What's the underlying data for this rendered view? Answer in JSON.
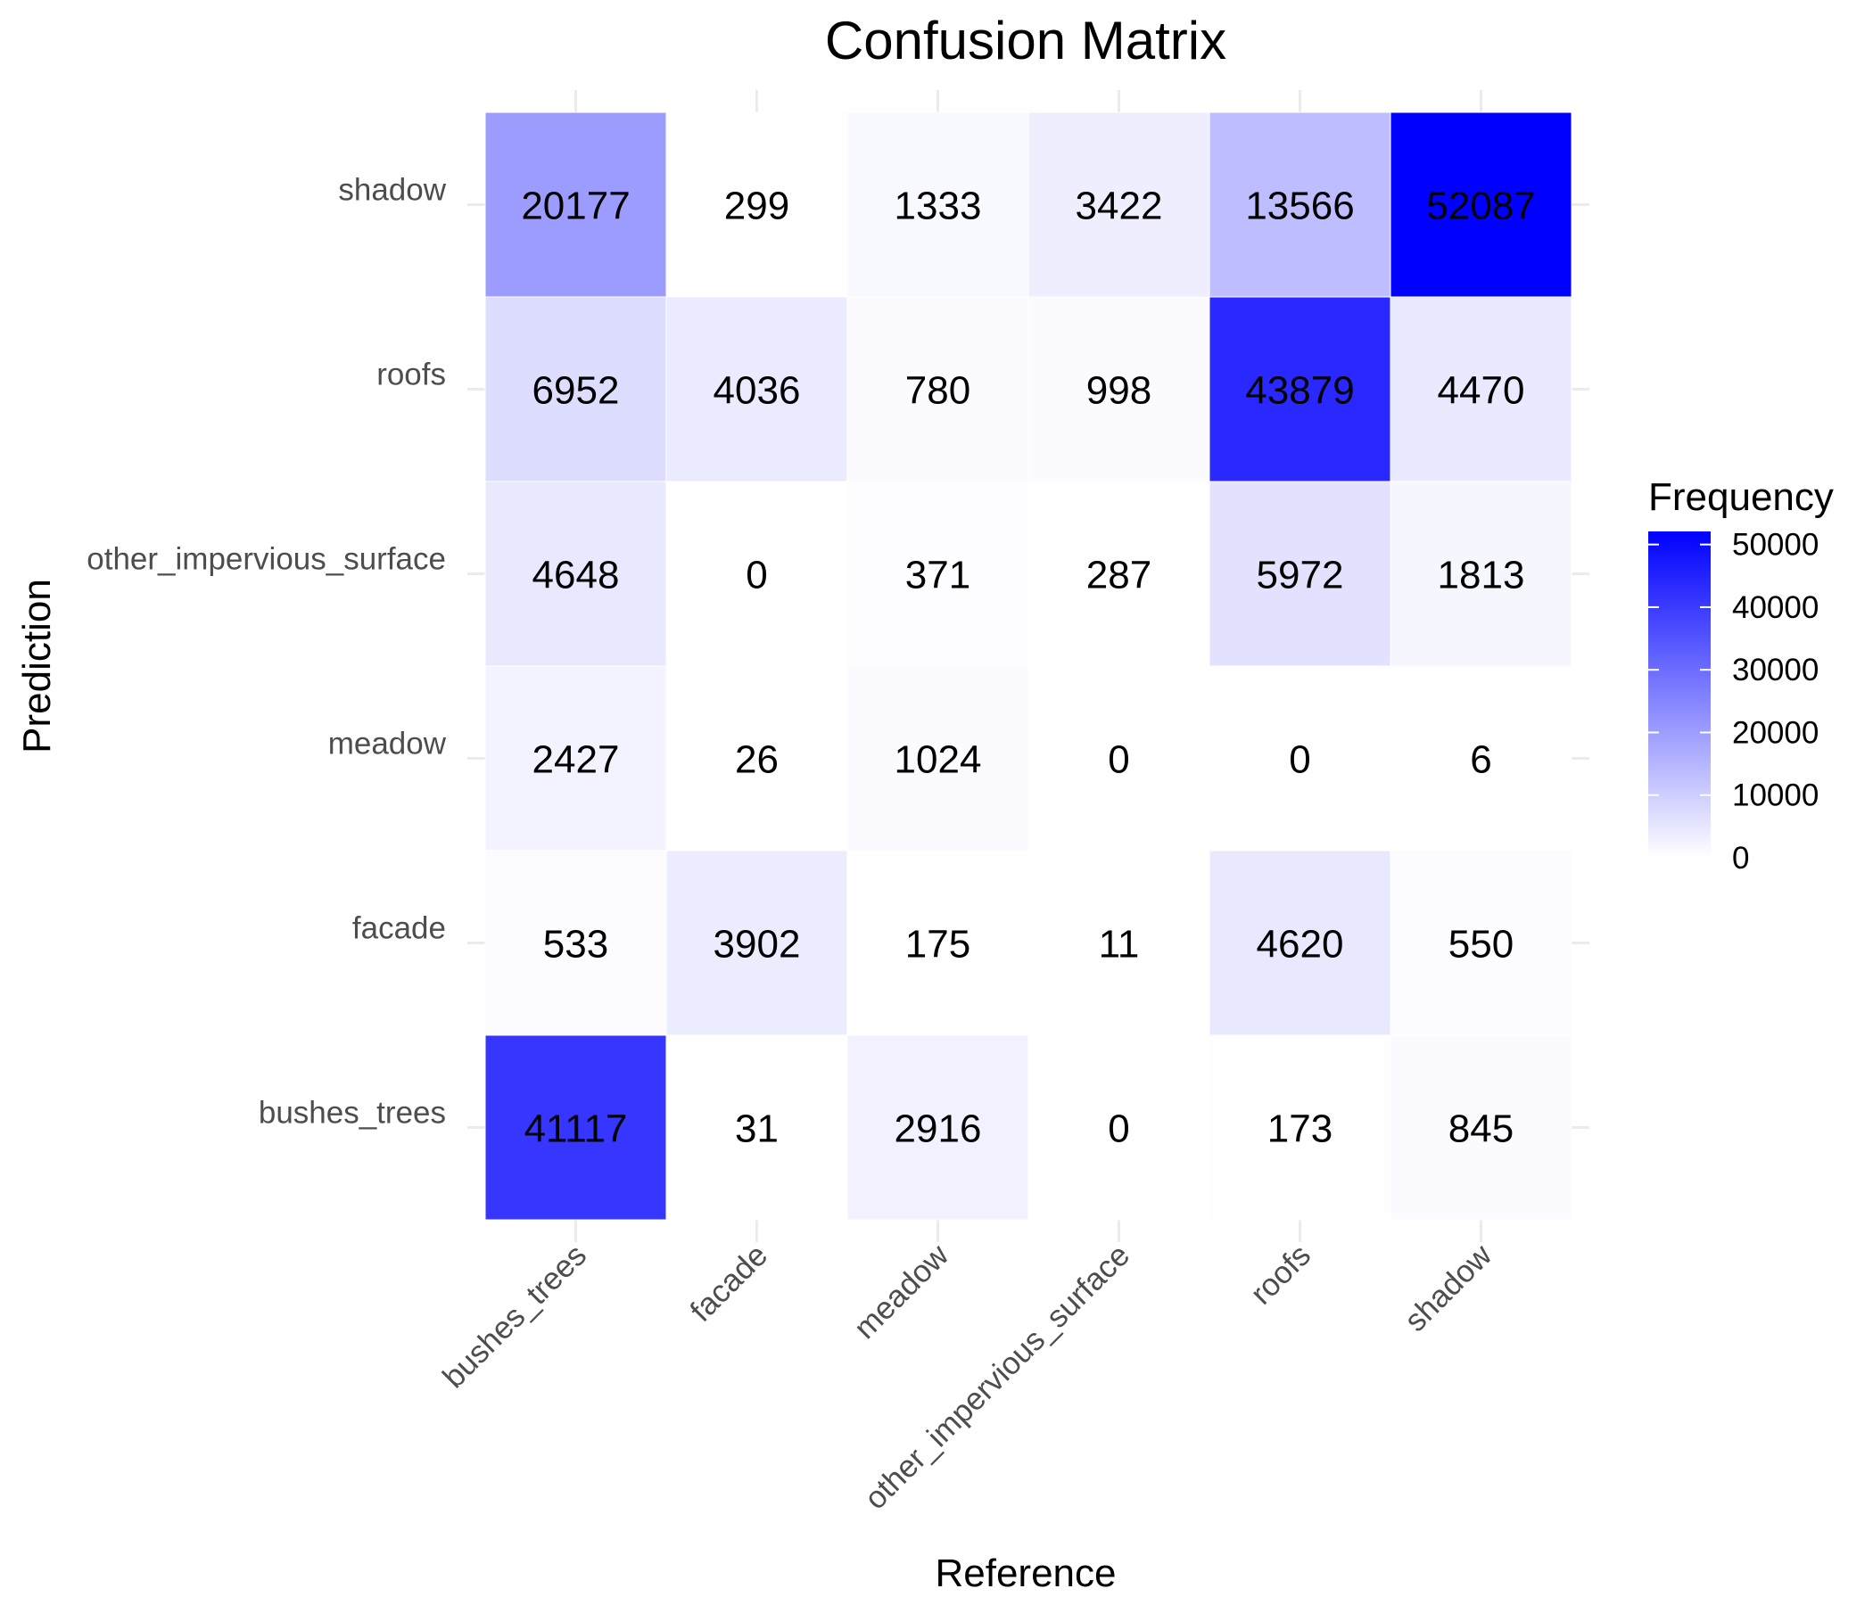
{
  "chart_data": {
    "type": "heatmap",
    "title": "Confusion Matrix",
    "xlabel": "Reference",
    "ylabel": "Prediction",
    "x_categories": [
      "bushes_trees",
      "facade",
      "meadow",
      "other_impervious_surface",
      "roofs",
      "shadow"
    ],
    "y_categories": [
      "bushes_trees",
      "facade",
      "meadow",
      "other_impervious_surface",
      "roofs",
      "shadow"
    ],
    "matrix": [
      [
        41117,
        31,
        2916,
        0,
        173,
        845
      ],
      [
        533,
        3902,
        175,
        11,
        4620,
        550
      ],
      [
        2427,
        26,
        1024,
        0,
        0,
        6
      ],
      [
        4648,
        0,
        371,
        287,
        5972,
        1813
      ],
      [
        6952,
        4036,
        780,
        998,
        43879,
        4470
      ],
      [
        20177,
        299,
        1333,
        3422,
        13566,
        52087
      ]
    ],
    "legend": {
      "title": "Frequency",
      "ticks": [
        0,
        10000,
        20000,
        30000,
        40000,
        50000
      ],
      "range": [
        0,
        52087
      ],
      "low_color": "#ffffff",
      "high_color": "#0000ff",
      "placement": "right"
    },
    "grid": true
  }
}
